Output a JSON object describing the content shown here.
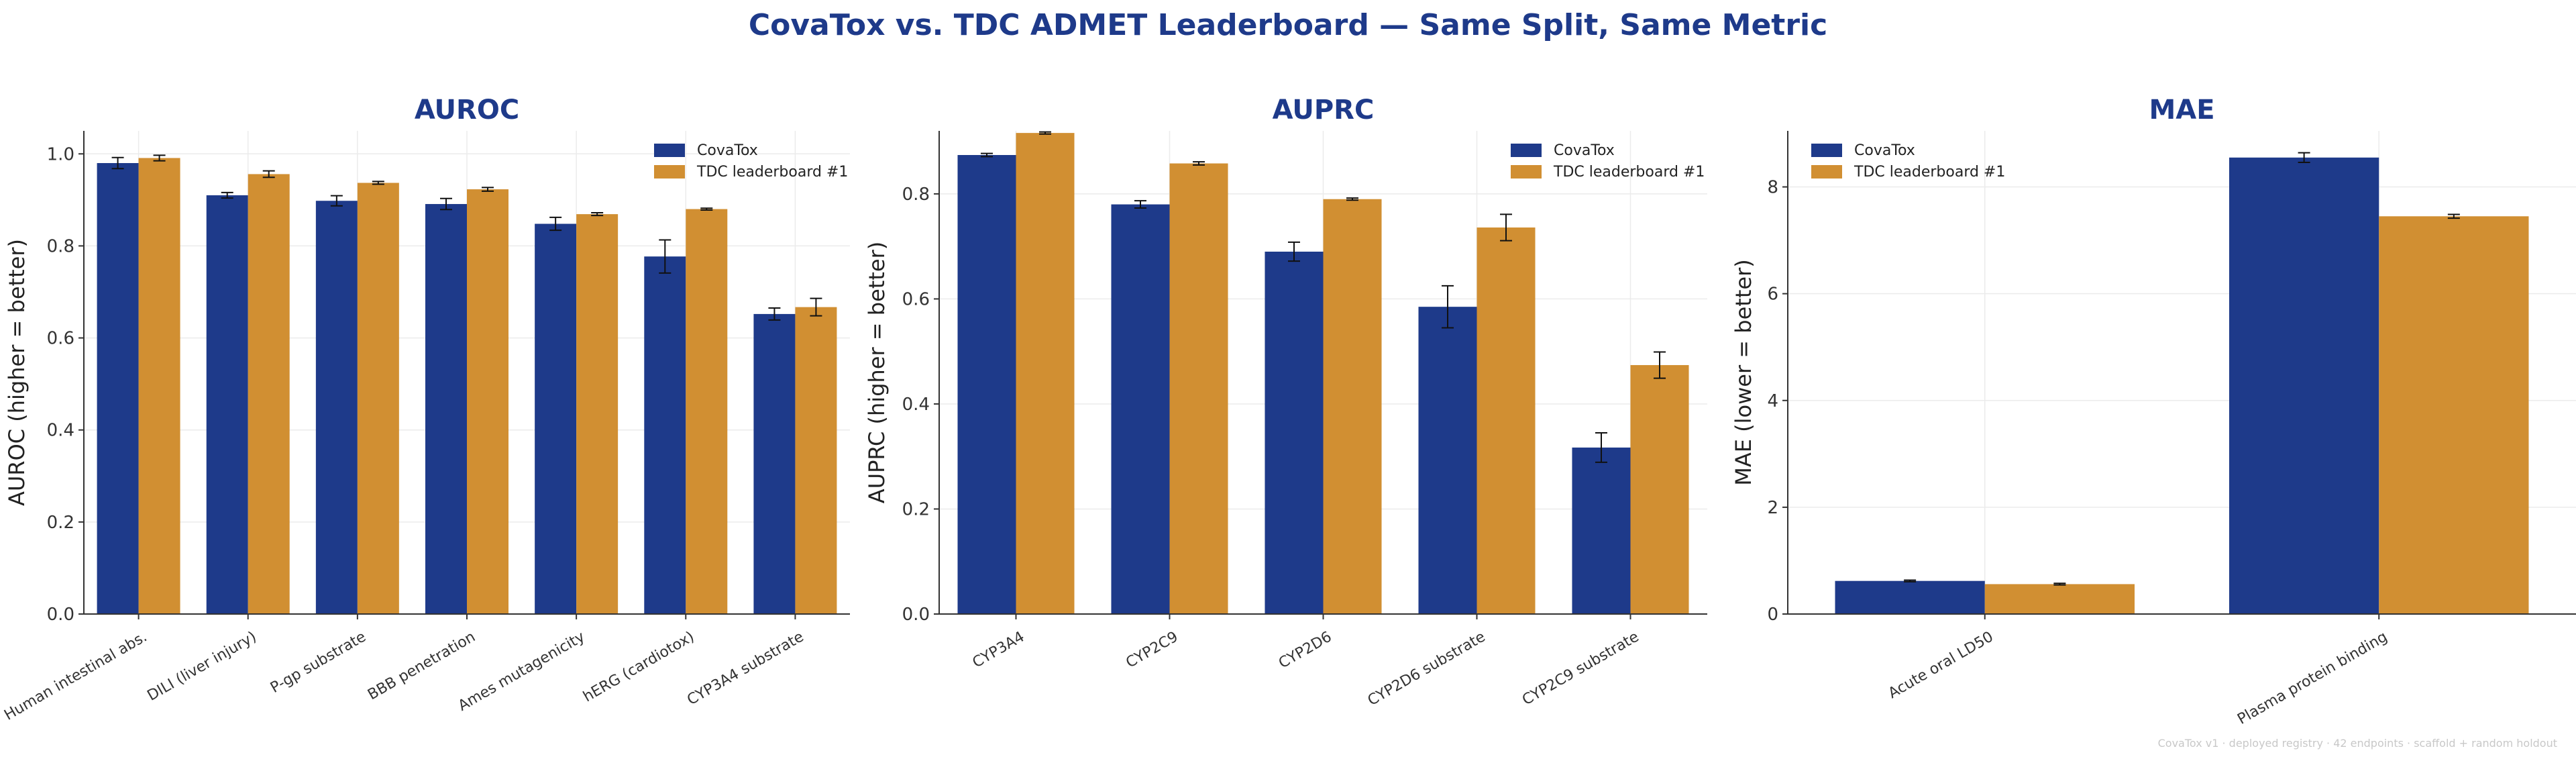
{
  "title": "CovaTox vs. TDC ADMET Leaderboard — Same Split, Same Metric",
  "footer": "CovaTox v1 · deployed registry · 42 endpoints · scaffold + random holdout",
  "colors": {
    "covatox": "#1e3a8a",
    "tdc": "#d18f32",
    "title": "#1e3a8a"
  },
  "chart_data": [
    {
      "type": "bar",
      "title": "AUROC",
      "ylabel": "AUROC  (higher = better)",
      "ylim": [
        0,
        1.05
      ],
      "yticks": [
        "0.0",
        "0.2",
        "0.4",
        "0.6",
        "0.8",
        "1.0"
      ],
      "legend": "top-right",
      "grid": true,
      "categories": [
        "Human intestinal abs.",
        "DILI (liver injury)",
        "P-gp substrate",
        "BBB penetration",
        "Ames mutagenicity",
        "hERG (cardiotox)",
        "CYP3A4 substrate"
      ],
      "series": [
        {
          "name": "CovaTox",
          "values": [
            0.98,
            0.91,
            0.898,
            0.891,
            0.848,
            0.777,
            0.652
          ],
          "errors": [
            0.012,
            0.006,
            0.011,
            0.012,
            0.014,
            0.036,
            0.013
          ]
        },
        {
          "name": "TDC leaderboard #1",
          "values": [
            0.991,
            0.956,
            0.937,
            0.923,
            0.869,
            0.88,
            0.667
          ],
          "errors": [
            0.006,
            0.007,
            0.003,
            0.004,
            0.003,
            0.002,
            0.019
          ]
        }
      ]
    },
    {
      "type": "bar",
      "title": "AUPRC",
      "ylabel": "AUPRC  (higher = better)",
      "ylim": [
        0,
        0.92
      ],
      "yticks": [
        "0.0",
        "0.2",
        "0.4",
        "0.6",
        "0.8"
      ],
      "legend": "top-right",
      "grid": true,
      "categories": [
        "CYP3A4",
        "CYP2C9",
        "CYP2D6",
        "CYP2D6 substrate",
        "CYP2C9 substrate"
      ],
      "series": [
        {
          "name": "CovaTox",
          "values": [
            0.874,
            0.78,
            0.69,
            0.585,
            0.317
          ],
          "errors": [
            0.003,
            0.007,
            0.018,
            0.04,
            0.028
          ]
        },
        {
          "name": "TDC leaderboard #1",
          "values": [
            0.916,
            0.858,
            0.79,
            0.736,
            0.474
          ],
          "errors": [
            0.002,
            0.003,
            0.002,
            0.025,
            0.025
          ]
        }
      ]
    },
    {
      "type": "bar",
      "title": "MAE",
      "ylabel": "MAE  (lower = better)",
      "ylim": [
        0,
        9.05
      ],
      "yticks": [
        "0",
        "2",
        "4",
        "6",
        "8"
      ],
      "legend": "top-left",
      "grid": true,
      "categories": [
        "Acute oral LD50",
        "Plasma protein binding"
      ],
      "series": [
        {
          "name": "CovaTox",
          "values": [
            0.62,
            8.55
          ],
          "errors": [
            0.015,
            0.09
          ]
        },
        {
          "name": "TDC leaderboard #1",
          "values": [
            0.56,
            7.45
          ],
          "errors": [
            0.015,
            0.035
          ]
        }
      ]
    }
  ]
}
